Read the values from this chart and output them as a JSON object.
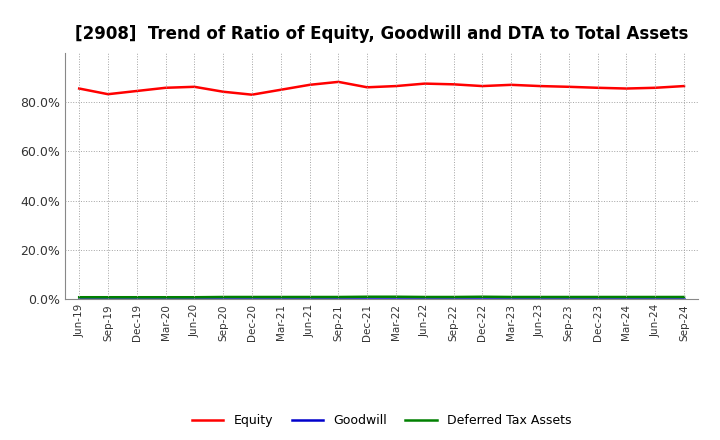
{
  "title": "[2908]  Trend of Ratio of Equity, Goodwill and DTA to Total Assets",
  "x_labels": [
    "Jun-19",
    "Sep-19",
    "Dec-19",
    "Mar-20",
    "Jun-20",
    "Sep-20",
    "Dec-20",
    "Mar-21",
    "Jun-21",
    "Sep-21",
    "Dec-21",
    "Mar-22",
    "Jun-22",
    "Sep-22",
    "Dec-22",
    "Mar-23",
    "Jun-23",
    "Sep-23",
    "Dec-23",
    "Mar-24",
    "Jun-24",
    "Sep-24"
  ],
  "equity": [
    85.5,
    83.2,
    84.5,
    85.8,
    86.2,
    84.2,
    83.0,
    85.0,
    87.0,
    88.2,
    86.0,
    86.5,
    87.5,
    87.2,
    86.5,
    87.0,
    86.5,
    86.2,
    85.8,
    85.5,
    85.8,
    86.5
  ],
  "goodwill": [
    0.0,
    0.0,
    0.0,
    0.0,
    0.0,
    0.0,
    0.0,
    0.0,
    0.0,
    0.0,
    0.0,
    0.0,
    0.0,
    0.0,
    0.0,
    0.0,
    0.0,
    0.0,
    0.0,
    0.0,
    0.0,
    0.0
  ],
  "dta": [
    0.8,
    0.8,
    0.8,
    0.8,
    0.8,
    0.9,
    0.9,
    0.9,
    0.9,
    0.9,
    1.0,
    1.0,
    0.9,
    0.9,
    1.0,
    0.9,
    0.9,
    0.9,
    0.9,
    0.9,
    0.9,
    0.9
  ],
  "equity_color": "#ff0000",
  "goodwill_color": "#0000cc",
  "dta_color": "#008000",
  "ylim": [
    0,
    100
  ],
  "yticks": [
    0,
    20,
    40,
    60,
    80
  ],
  "ytick_labels": [
    "0.0%",
    "20.0%",
    "40.0%",
    "60.0%",
    "80.0%"
  ],
  "legend_labels": [
    "Equity",
    "Goodwill",
    "Deferred Tax Assets"
  ],
  "background_color": "#ffffff",
  "grid_color": "#999999",
  "title_fontsize": 12,
  "line_width": 1.8
}
